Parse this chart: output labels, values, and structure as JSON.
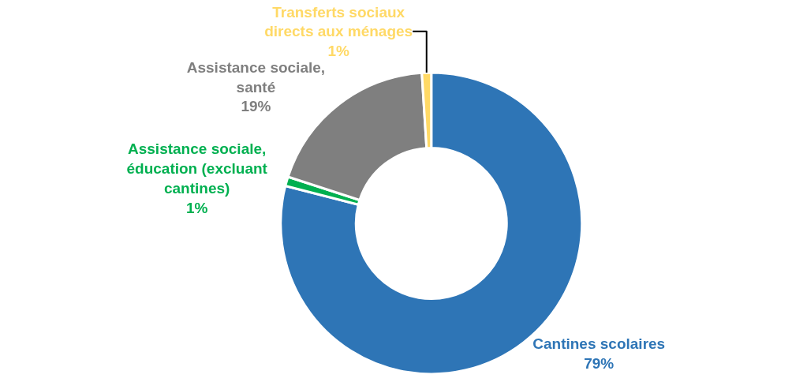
{
  "chart_data": {
    "type": "donut",
    "categories": [
      "Cantines scolaires",
      "Assistance sociale, éducation (excluant cantines)",
      "Assistance sociale, santé",
      "Transferts sociaux directs aux ménages"
    ],
    "values": [
      79,
      1,
      19,
      1
    ],
    "value_labels": [
      "79%",
      "1%",
      "19%",
      "1%"
    ],
    "colors": [
      "#2e75b6",
      "#00b050",
      "#7f7f7f",
      "#ffd966"
    ],
    "legend": false
  }
}
